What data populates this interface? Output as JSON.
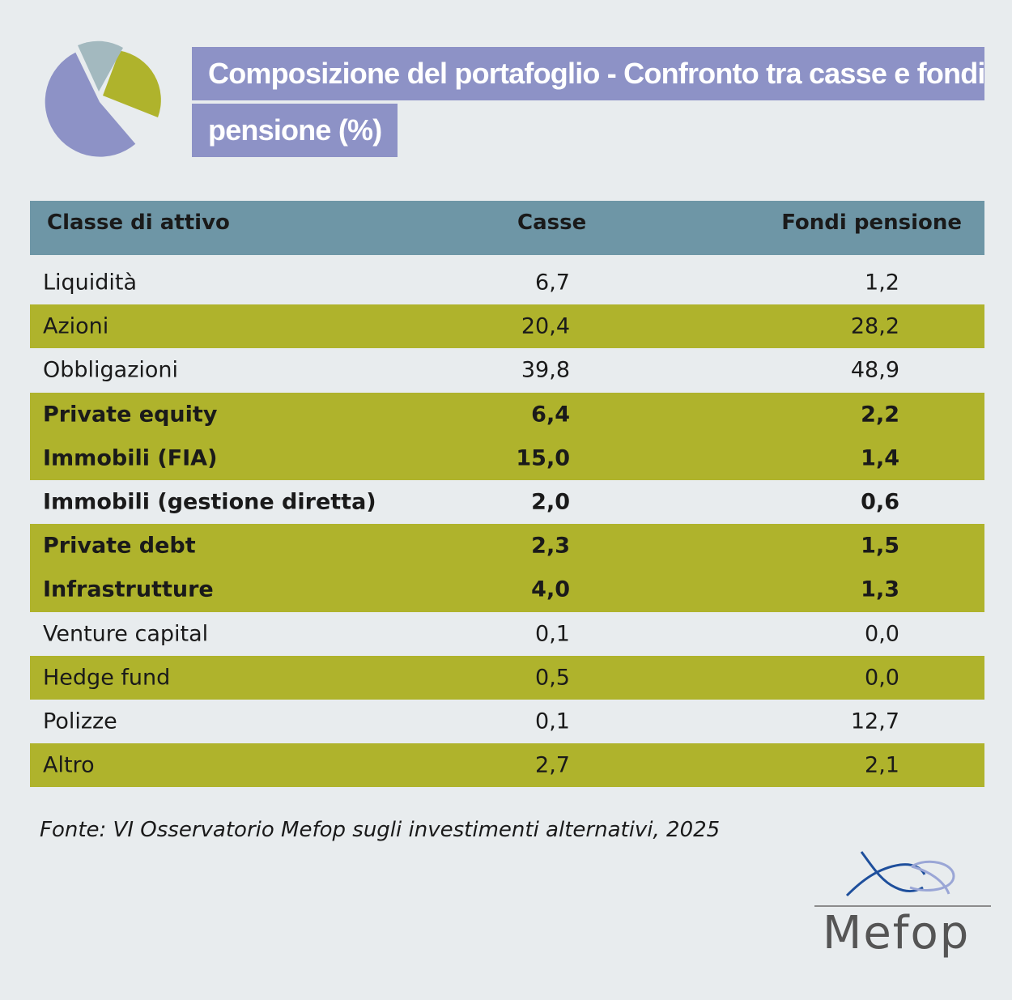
{
  "title": {
    "line1": "Composizione del portafoglio - Confronto tra casse e fondi",
    "line2": "pensione (%)"
  },
  "chart_data": {
    "type": "table",
    "columns": [
      "Classe di attivo",
      "Casse",
      "Fondi pensione"
    ],
    "rows": [
      {
        "label": "Liquidità",
        "casse": "6,7",
        "fondi": "1,2",
        "highlight": false,
        "bold": false
      },
      {
        "label": "Azioni",
        "casse": "20,4",
        "fondi": "28,2",
        "highlight": true,
        "bold": false
      },
      {
        "label": "Obbligazioni",
        "casse": "39,8",
        "fondi": "48,9",
        "highlight": false,
        "bold": false
      },
      {
        "label": "Private equity",
        "casse": "6,4",
        "fondi": "2,2",
        "highlight": true,
        "bold": true
      },
      {
        "label": "Immobili (FIA)",
        "casse": "15,0",
        "fondi": "1,4",
        "highlight": true,
        "bold": true
      },
      {
        "label": "Immobili (gestione diretta)",
        "casse": "2,0",
        "fondi": "0,6",
        "highlight": false,
        "bold": true
      },
      {
        "label": "Private debt",
        "casse": "2,3",
        "fondi": "1,5",
        "highlight": true,
        "bold": true
      },
      {
        "label": "Infrastrutture",
        "casse": "4,0",
        "fondi": "1,3",
        "highlight": true,
        "bold": true
      },
      {
        "label": "Venture capital",
        "casse": "0,1",
        "fondi": "0,0",
        "highlight": false,
        "bold": false
      },
      {
        "label": "Hedge fund",
        "casse": "0,5",
        "fondi": "0,0",
        "highlight": true,
        "bold": false
      },
      {
        "label": "Polizze",
        "casse": "0,1",
        "fondi": "12,7",
        "highlight": false,
        "bold": false
      },
      {
        "label": "Altro",
        "casse": "2,7",
        "fondi": "2,1",
        "highlight": true,
        "bold": false
      }
    ]
  },
  "source": "Fonte: VI Osservatorio Mefop sugli investimenti alternativi, 2025",
  "logo": {
    "text": "Mefop"
  },
  "icons": {
    "header": "pie-chart-icon",
    "logo": "mefop-logo"
  },
  "colors": {
    "background": "#e8ecee",
    "title_bg": "#8d92c6",
    "header_bg": "#6e96a6",
    "highlight_row": "#afb32c",
    "pie_main": "#8d92c6",
    "pie_green": "#afb32c",
    "pie_grey": "#a3b9bf"
  }
}
